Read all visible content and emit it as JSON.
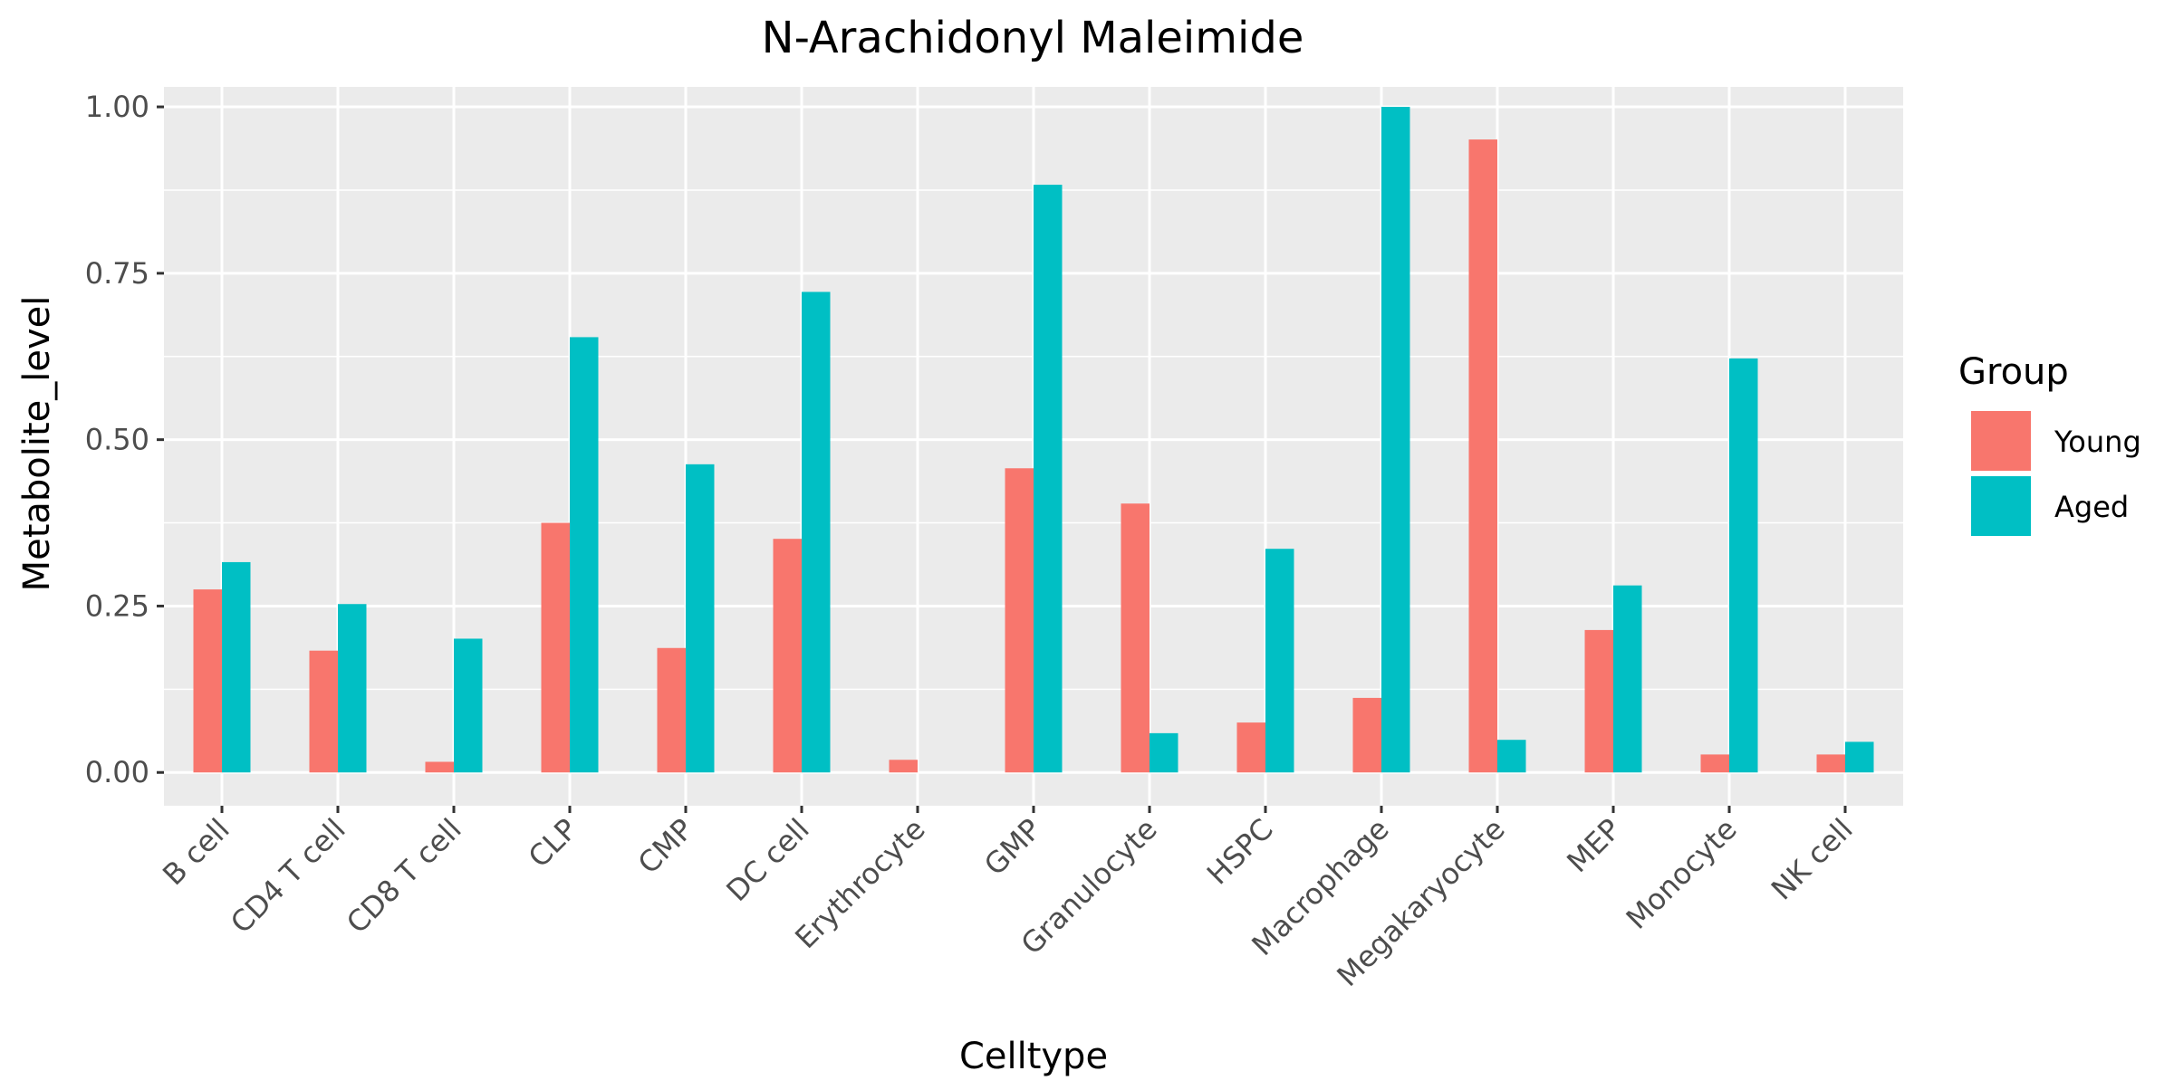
{
  "chart_data": {
    "type": "bar",
    "title": "N-Arachidonyl Maleimide",
    "xlabel": "Celltype",
    "ylabel": "Metabolite_level",
    "ylim": [
      -0.05,
      1.03
    ],
    "yticks": [
      0.0,
      0.25,
      0.5,
      0.75,
      1.0
    ],
    "ytick_labels": [
      "0.00",
      "0.25",
      "0.50",
      "0.75",
      "1.00"
    ],
    "grid": true,
    "legend": {
      "title": "Group",
      "position": "right"
    },
    "categories": [
      "B cell",
      "CD4 T cell",
      "CD8 T cell",
      "CLP",
      "CMP",
      "DC cell",
      "Erythrocyte",
      "GMP",
      "Granulocyte",
      "HSPC",
      "Macrophage",
      "Megakaryocyte",
      "MEP",
      "Monocyte",
      "NK cell"
    ],
    "series": [
      {
        "name": "Young",
        "color": "#F8766D",
        "values": [
          0.275,
          0.183,
          0.016,
          0.375,
          0.187,
          0.351,
          0.019,
          0.457,
          0.404,
          0.075,
          0.112,
          0.951,
          0.214,
          0.027,
          0.027
        ]
      },
      {
        "name": "Aged",
        "color": "#00BFC4",
        "values": [
          0.316,
          0.253,
          0.201,
          0.654,
          0.463,
          0.722,
          0.0,
          0.883,
          0.059,
          0.336,
          1.0,
          0.049,
          0.281,
          0.622,
          0.046
        ]
      }
    ],
    "panel_background": "#EBEBEB",
    "gridline_color": "#FFFFFF"
  }
}
